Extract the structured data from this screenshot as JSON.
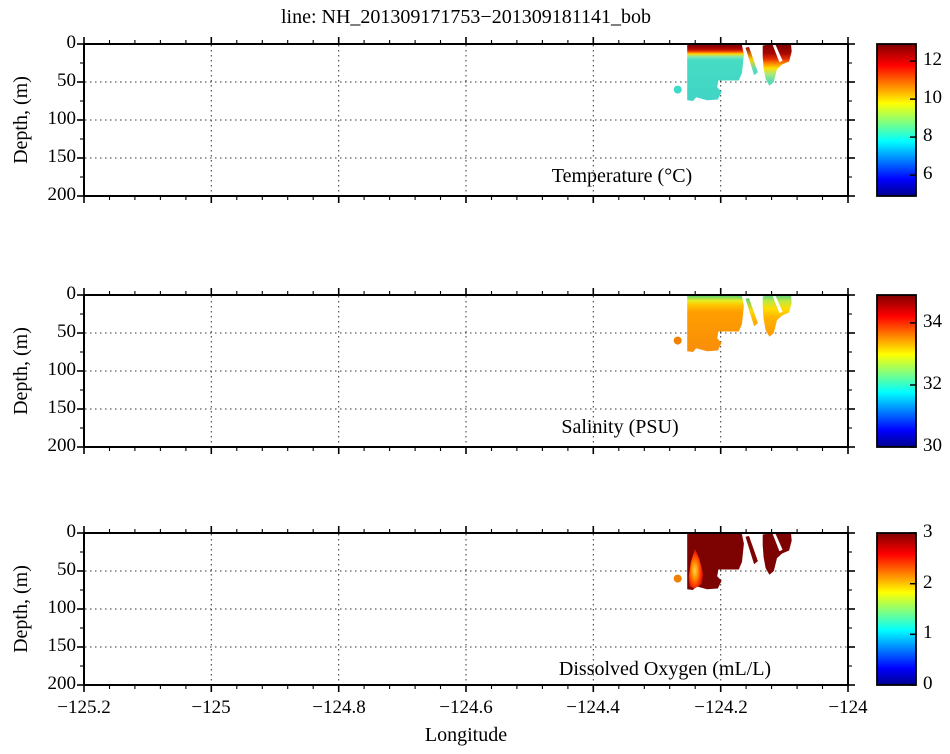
{
  "title": "line: NH_201309171753−201309181141_bob",
  "xlabel": "Longitude",
  "ylabel": "Depth, (m)",
  "axes": {
    "xlim": [
      -125.2,
      -124.0
    ],
    "depth_lim": [
      0,
      200
    ],
    "xticks": [
      {
        "v": -125.2,
        "label": "−125.2"
      },
      {
        "v": -125.0,
        "label": "−125"
      },
      {
        "v": -124.8,
        "label": "−124.8"
      },
      {
        "v": -124.6,
        "label": "−124.6"
      },
      {
        "v": -124.4,
        "label": "−124.4"
      },
      {
        "v": -124.2,
        "label": "−124.2"
      },
      {
        "v": -124.0,
        "label": "−124"
      }
    ],
    "yticks": [
      {
        "v": 0,
        "label": "0"
      },
      {
        "v": 50,
        "label": "50"
      },
      {
        "v": 100,
        "label": "100"
      },
      {
        "v": 150,
        "label": "150"
      },
      {
        "v": 200,
        "label": "200"
      }
    ],
    "x_minor_step": 0.04,
    "y_minor_step": 25,
    "grid": "dotted"
  },
  "section_geometry": {
    "lon_extent": [
      -124.253,
      -124.088
    ],
    "max_depth_m": 76,
    "gap_lon": [
      -124.166,
      -124.135
    ],
    "main_patch": [
      [
        -124.2525,
        1.5
      ],
      [
        -124.2455,
        0
      ],
      [
        -124.167,
        0
      ],
      [
        -124.1635,
        14
      ],
      [
        -124.1665,
        38
      ],
      [
        -124.1715,
        48
      ],
      [
        -124.2035,
        48
      ],
      [
        -124.2055,
        57
      ],
      [
        -124.1985,
        63
      ],
      [
        -124.2045,
        73
      ],
      [
        -124.2215,
        74
      ],
      [
        -124.2385,
        70
      ],
      [
        -124.2435,
        75
      ],
      [
        -124.2525,
        74
      ]
    ],
    "side_patch": [
      [
        -124.134,
        2
      ],
      [
        -124.1205,
        0
      ],
      [
        -124.0895,
        0
      ],
      [
        -124.0885,
        10
      ],
      [
        -124.0925,
        23
      ],
      [
        -124.1035,
        27
      ],
      [
        -124.1115,
        33
      ],
      [
        -124.1165,
        50
      ],
      [
        -124.1235,
        55
      ],
      [
        -124.1295,
        46
      ],
      [
        -124.1325,
        32
      ],
      [
        -124.134,
        16
      ]
    ],
    "streak": [
      [
        -124.161,
        5
      ],
      [
        -124.1555,
        4
      ],
      [
        -124.1415,
        37
      ],
      [
        -124.1475,
        41
      ]
    ],
    "data_gap_sliver": [
      [
        -124.1185,
        1
      ],
      [
        -124.1138,
        1
      ],
      [
        -124.1028,
        22
      ],
      [
        -124.1078,
        24
      ]
    ],
    "pocket": [
      [
        -124.2405,
        21
      ],
      [
        -124.2468,
        38
      ],
      [
        -124.2502,
        58
      ],
      [
        -124.2488,
        70
      ],
      [
        -124.2408,
        73
      ],
      [
        -124.2295,
        67
      ],
      [
        -124.2272,
        54
      ],
      [
        -124.2335,
        34
      ]
    ],
    "outlier": {
      "lon": -124.2675,
      "depth_m": 60
    }
  },
  "chart_data": [
    {
      "type": "heatmap",
      "label": "Temperature (°C)",
      "colorbar": {
        "min": 4.9,
        "max": 12.9,
        "ticks": [
          12,
          10,
          8,
          6
        ]
      },
      "values": {
        "surface": 12.6,
        "subsurface": 8.4,
        "outlier_point": 8.3
      },
      "fills": {
        "main": {
          "stops": [
            [
              0,
              "#7a0000"
            ],
            [
              0.07,
              "#a30000"
            ],
            [
              0.11,
              "#cc1a00"
            ],
            [
              0.145,
              "#ff6a00"
            ],
            [
              0.175,
              "#ffd800"
            ],
            [
              0.22,
              "#8ae8ac"
            ],
            [
              0.28,
              "#46dcc3"
            ],
            [
              1,
              "#41d4c6"
            ]
          ]
        },
        "side": {
          "stops": [
            [
              0,
              "#7d0000"
            ],
            [
              0.22,
              "#a50600"
            ],
            [
              0.36,
              "#e62e00"
            ],
            [
              0.47,
              "#ff8a00"
            ],
            [
              0.58,
              "#ffdf00"
            ],
            [
              0.72,
              "#aae87c"
            ],
            [
              0.88,
              "#5fdcae"
            ],
            [
              1,
              "#4fd6ba"
            ]
          ]
        },
        "streak": {
          "stops": [
            [
              0,
              "#9e0000"
            ],
            [
              0.45,
              "#ffd000"
            ],
            [
              0.8,
              "#55dcc0"
            ],
            [
              1,
              "#4ed6c4"
            ]
          ]
        },
        "pocket": null,
        "dot": "#3fd9c9"
      }
    },
    {
      "type": "heatmap",
      "label": "Salinity (PSU)",
      "colorbar": {
        "min": 30.0,
        "max": 34.9,
        "ticks": [
          34,
          32,
          30
        ]
      },
      "values": {
        "surface": 31.7,
        "subsurface": 33.3,
        "outlier_point": 33.2
      },
      "fills": {
        "main": {
          "stops": [
            [
              0,
              "#49cc80"
            ],
            [
              0.05,
              "#96dd4e"
            ],
            [
              0.1,
              "#e9ec20"
            ],
            [
              0.18,
              "#ffc300"
            ],
            [
              0.3,
              "#ff9e00"
            ],
            [
              1,
              "#f98e08"
            ]
          ]
        },
        "side": {
          "stops": [
            [
              0,
              "#55cf88"
            ],
            [
              0.14,
              "#bde842"
            ],
            [
              0.33,
              "#ffdd00"
            ],
            [
              0.55,
              "#ffb400"
            ],
            [
              1,
              "#ff9a00"
            ]
          ]
        },
        "streak": {
          "stops": [
            [
              0,
              "#5bcf82"
            ],
            [
              0.45,
              "#ffd800"
            ],
            [
              1,
              "#ff9e00"
            ]
          ]
        },
        "pocket": null,
        "dot": "#f08000"
      }
    },
    {
      "type": "heatmap",
      "label": "Dissolved Oxygen (mL/L)",
      "colorbar": {
        "min": 0,
        "max": 3,
        "ticks": [
          3,
          2,
          1,
          0
        ]
      },
      "values": {
        "bulk": 3.0,
        "low_oxygen_pocket_min": 1.5,
        "outlier_point": 2.2
      },
      "fills": {
        "main": {
          "solid": "#7d0202"
        },
        "side": {
          "solid": "#7d0202"
        },
        "streak": {
          "solid": "#7d0202"
        },
        "pocket": {
          "radial": [
            [
              0,
              "#ffd24d"
            ],
            [
              0.3,
              "#ff9000"
            ],
            [
              0.55,
              "#ff3a00"
            ],
            [
              0.8,
              "#c00c00"
            ],
            [
              1,
              "#7d0202"
            ]
          ]
        },
        "dot": "#f08000"
      }
    }
  ],
  "colors": {
    "jet_top_to_bottom": [
      "#7f0000",
      "#ff0000",
      "#ffff00",
      "#00ffff",
      "#0000ff",
      "#00008f"
    ],
    "grid": "#333333",
    "axis": "#000000",
    "background": "#ffffff"
  }
}
